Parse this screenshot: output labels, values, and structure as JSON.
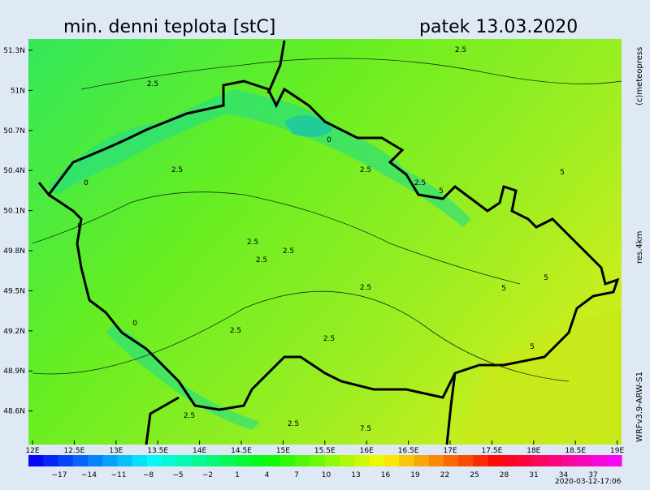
{
  "header": {
    "title": "min. denni teplota [stC]",
    "date": "patek 13.03.2020"
  },
  "side": {
    "copyright": "(c)meteopress",
    "resolution": "res.4km",
    "model": "WRFv3.9-ARW-S1"
  },
  "footer": {
    "timestamp": "2020-03-12-17:06"
  },
  "map": {
    "lat_labels": [
      "51.3N",
      "51N",
      "50.7N",
      "50.4N",
      "50.1N",
      "49.8N",
      "49.5N",
      "49.2N",
      "48.9N",
      "48.6N"
    ],
    "lon_labels": [
      "12E",
      "12.5E",
      "13E",
      "13.5E",
      "14E",
      "14.5E",
      "15E",
      "15.5E",
      "16E",
      "16.5E",
      "17E",
      "17.5E",
      "18E",
      "18.5E",
      "19E"
    ],
    "contour_labels": [
      "2.5",
      "2.5",
      "0",
      "2.5",
      "0",
      "2.5",
      "2.5",
      "2.5",
      "2.5",
      "2.5",
      "2.5",
      "5",
      "0",
      "0",
      "2.5",
      "5",
      "5",
      "5",
      "2.5",
      "2.5",
      "2.5",
      "7.5",
      "5"
    ]
  },
  "colorbar": {
    "labels": [
      "−17",
      "−14",
      "−11",
      "−8",
      "−5",
      "−2",
      "1",
      "4",
      "7",
      "10",
      "13",
      "16",
      "19",
      "22",
      "25",
      "28",
      "31",
      "34",
      "37"
    ]
  }
}
